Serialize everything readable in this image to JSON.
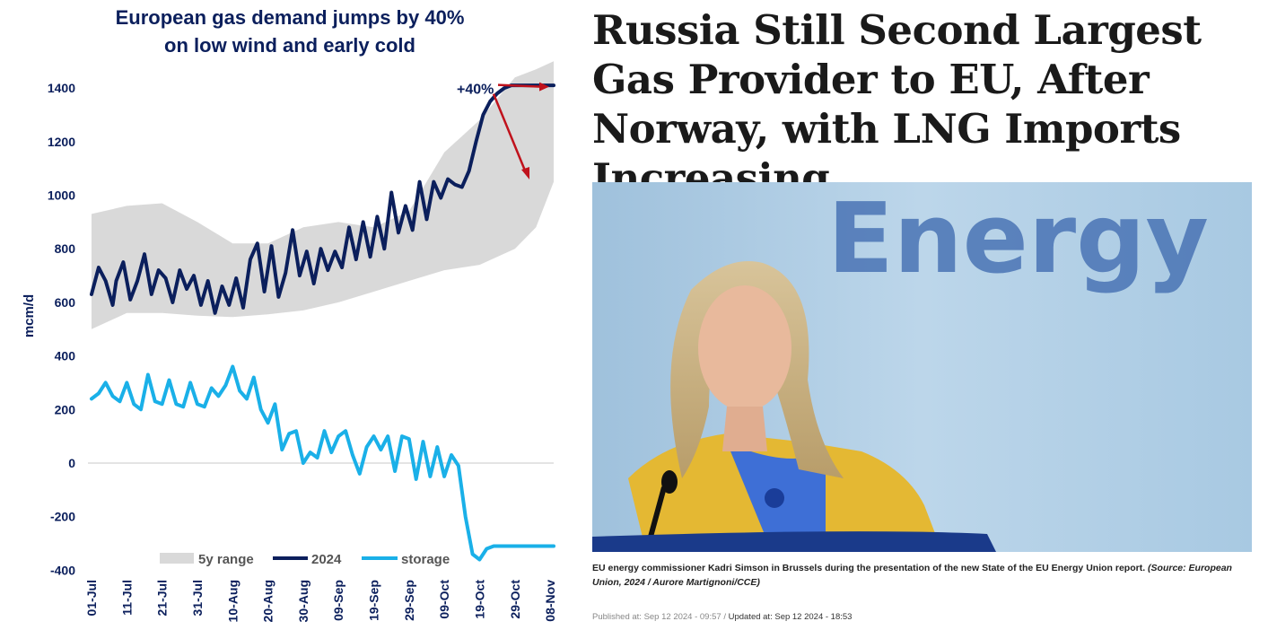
{
  "chart_data": {
    "type": "line",
    "title_lines": [
      "European gas demand jumps by 40%",
      "on low wind and early cold"
    ],
    "ylabel": "mcm/d",
    "ylim": [
      -400,
      1500
    ],
    "yticks": [
      1400,
      1200,
      1000,
      800,
      600,
      400,
      200,
      0,
      -200,
      -400
    ],
    "xticks": [
      "01-Jul",
      "11-Jul",
      "21-Jul",
      "31-Jul",
      "10-Aug",
      "20-Aug",
      "30-Aug",
      "09-Sep",
      "19-Sep",
      "29-Sep",
      "09-Oct",
      "19-Oct",
      "29-Oct",
      "08-Nov"
    ],
    "annotation": "+40%",
    "legend": {
      "placement": "bottom",
      "items": [
        "5y range",
        "2024",
        "storage"
      ]
    },
    "colors": {
      "range": "#d9d9d9",
      "demand": "#0b1f5c",
      "storage": "#1ab0e8",
      "arrow": "#c0121c",
      "title": "#0b1f5c"
    },
    "series": [
      {
        "name": "5y range",
        "kind": "band",
        "x": [
          0,
          10,
          20,
          30,
          40,
          50,
          60,
          70,
          80,
          90,
          100,
          110,
          120,
          126,
          131
        ],
        "low": [
          500,
          560,
          560,
          550,
          545,
          555,
          570,
          600,
          640,
          680,
          720,
          740,
          800,
          880,
          1050
        ],
        "high": [
          930,
          960,
          970,
          900,
          820,
          820,
          880,
          900,
          880,
          940,
          1160,
          1280,
          1440,
          1470,
          1500
        ]
      },
      {
        "name": "2024",
        "kind": "line",
        "x": [
          0,
          2,
          4,
          6,
          7,
          9,
          11,
          13,
          15,
          17,
          19,
          21,
          23,
          25,
          27,
          29,
          31,
          33,
          35,
          37,
          39,
          41,
          43,
          45,
          47,
          49,
          51,
          53,
          55,
          57,
          59,
          61,
          63,
          65,
          67,
          69,
          71,
          73,
          75,
          77,
          79,
          81,
          83,
          85,
          87,
          89,
          91,
          93,
          95,
          97,
          99,
          101,
          103,
          105,
          107,
          109,
          111,
          113,
          115,
          117,
          119,
          120,
          122,
          124,
          126,
          128,
          130,
          131
        ],
        "values": [
          630,
          730,
          680,
          590,
          680,
          750,
          610,
          680,
          780,
          630,
          720,
          690,
          600,
          720,
          650,
          700,
          590,
          680,
          560,
          660,
          590,
          690,
          580,
          760,
          820,
          640,
          810,
          620,
          710,
          870,
          700,
          790,
          670,
          800,
          720,
          790,
          730,
          880,
          760,
          900,
          770,
          920,
          800,
          1010,
          860,
          960,
          870,
          1050,
          910,
          1050,
          990,
          1060,
          1040,
          1030,
          1090,
          1200,
          1300,
          1350,
          1380,
          1400,
          1410,
          1410,
          1410,
          1410,
          1410,
          1410,
          1410,
          1410
        ]
      },
      {
        "name": "storage",
        "kind": "line",
        "x": [
          0,
          2,
          4,
          6,
          8,
          10,
          12,
          14,
          16,
          18,
          20,
          22,
          24,
          26,
          28,
          30,
          32,
          34,
          36,
          38,
          40,
          42,
          44,
          46,
          48,
          50,
          52,
          54,
          56,
          58,
          60,
          62,
          64,
          66,
          68,
          70,
          72,
          74,
          76,
          78,
          80,
          82,
          84,
          86,
          88,
          90,
          92,
          94,
          96,
          98,
          100,
          102,
          104,
          106,
          108,
          110,
          112,
          114,
          116,
          118,
          120,
          122,
          124,
          126,
          128,
          130,
          131
        ],
        "values": [
          240,
          260,
          300,
          250,
          230,
          300,
          220,
          200,
          330,
          230,
          220,
          310,
          220,
          210,
          300,
          220,
          210,
          280,
          250,
          290,
          360,
          270,
          240,
          320,
          200,
          150,
          220,
          50,
          110,
          120,
          0,
          40,
          20,
          120,
          40,
          100,
          120,
          30,
          -40,
          60,
          100,
          50,
          100,
          -30,
          100,
          90,
          -60,
          80,
          -50,
          60,
          -50,
          30,
          -10,
          -200,
          -340,
          -360,
          -320,
          -310,
          -310,
          -310,
          -310,
          -310,
          -310,
          -310,
          -310,
          -310,
          -310
        ]
      }
    ]
  },
  "article": {
    "headline": "Russia Still Second Largest Gas Provider to EU, After Norway, with LNG Imports Increasing",
    "photo_text": "Energy",
    "caption": "EU energy commissioner Kadri Simson in Brussels during the presentation of the new State of the EU Energy Union report.",
    "caption_source": "(Source: European Union, 2024 / Aurore Martignoni/CCE)",
    "published": "Published at: Sep 12 2024 - 09:57",
    "separator": "/",
    "updated": "Updated at: Sep 12 2024 - 18:53"
  }
}
